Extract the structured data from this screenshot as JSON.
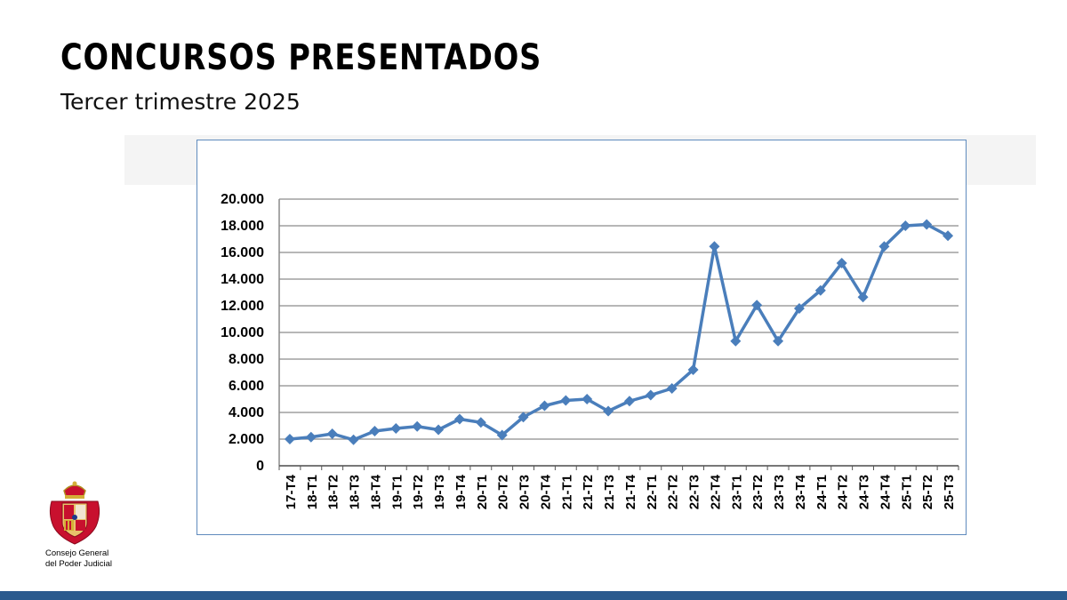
{
  "slide": {
    "title": "CONCURSOS PRESENTADOS",
    "subtitle": "Tercer trimestre 2025"
  },
  "logo": {
    "icon": "coat-of-arms-icon",
    "line1": "Consejo General",
    "line2": "del Poder Judicial"
  },
  "colors": {
    "line": "#4a7ebb",
    "grid": "#8c8c8c",
    "frame": "#5f8bbd",
    "footer": "#2b5a8e"
  },
  "chart_data": {
    "type": "line",
    "title": "",
    "xlabel": "",
    "ylabel": "",
    "ylim": [
      0,
      20000
    ],
    "yticks": [
      0,
      2000,
      4000,
      6000,
      8000,
      10000,
      12000,
      14000,
      16000,
      18000,
      20000
    ],
    "ytick_labels": [
      "0",
      "2.000",
      "4.000",
      "6.000",
      "8.000",
      "10.000",
      "12.000",
      "14.000",
      "16.000",
      "18.000",
      "20.000"
    ],
    "grid": true,
    "legend": "none",
    "marker": "diamond",
    "categories": [
      "17-T4",
      "18-T1",
      "18-T2",
      "18-T3",
      "18-T4",
      "19-T1",
      "19-T2",
      "19-T3",
      "19-T4",
      "20-T1",
      "20-T2",
      "20-T3",
      "20-T4",
      "21-T1",
      "21-T2",
      "21-T3",
      "21-T4",
      "22-T1",
      "22-T2",
      "22-T3",
      "22-T4",
      "23-T1",
      "23-T2",
      "23-T3",
      "23-T4",
      "24-T1",
      "24-T2",
      "24-T3",
      "24-T4",
      "25-T1",
      "25-T2",
      "25-T3"
    ],
    "series": [
      {
        "name": "Concursos presentados",
        "values": [
          2000,
          2150,
          2400,
          1950,
          2600,
          2800,
          2950,
          2700,
          3500,
          3250,
          2300,
          3650,
          4500,
          4900,
          5000,
          4100,
          4850,
          5300,
          5800,
          7200,
          16450,
          9350,
          12050,
          9350,
          11800,
          13150,
          15200,
          12650,
          16450,
          18000,
          18100,
          17250
        ]
      }
    ]
  }
}
